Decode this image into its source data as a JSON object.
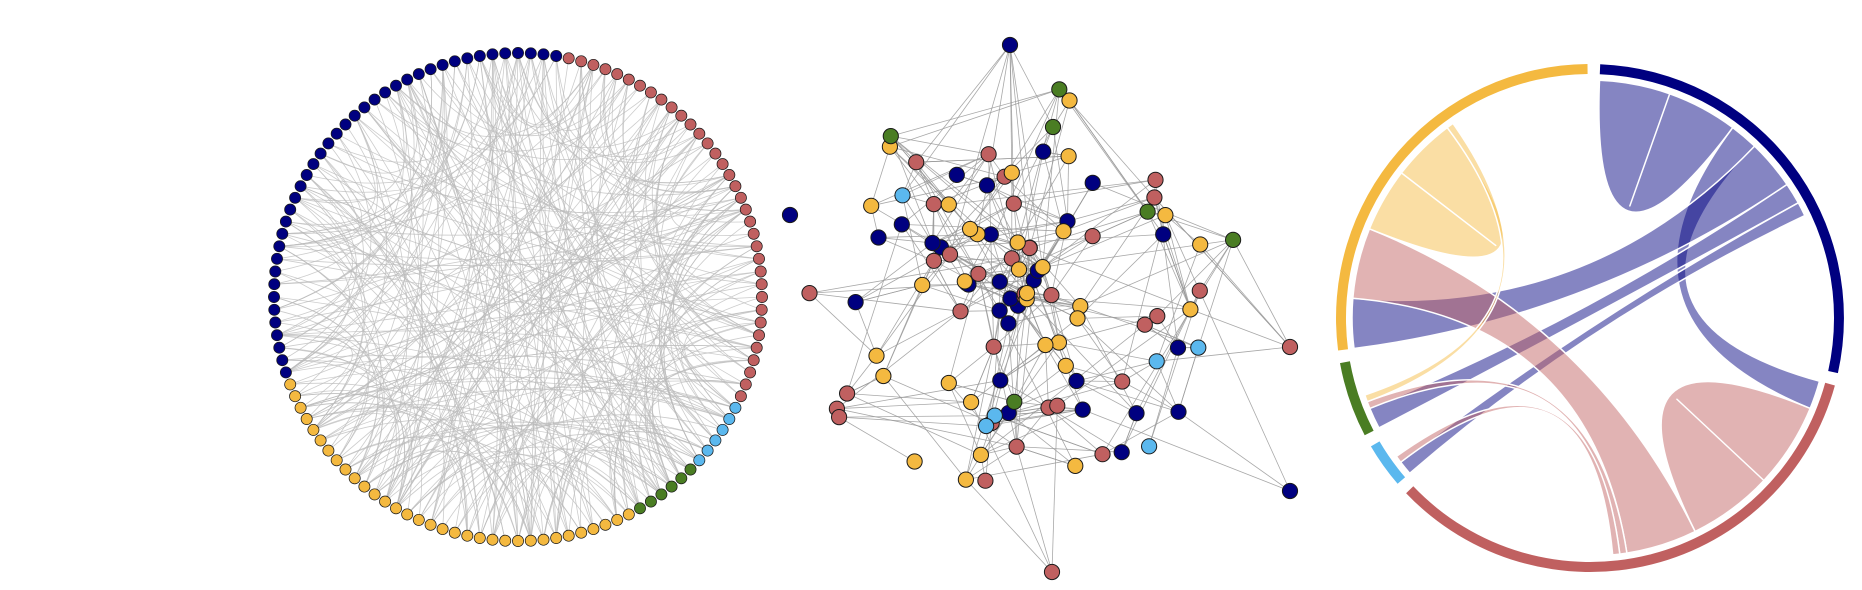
{
  "figure": {
    "palette": {
      "navy": "#000080",
      "red": "#c06060",
      "yellow": "#f4b940",
      "green": "#4a7d23",
      "lightblue": "#5bb8ee",
      "edge": "#999999",
      "circle_edge": "#bbbbbb",
      "background": "#ffffff"
    },
    "groups": [
      {
        "id": "navy",
        "color_key": "navy",
        "node_count": 40
      },
      {
        "id": "red",
        "color_key": "red",
        "node_count": 35
      },
      {
        "id": "lightblue",
        "color_key": "lightblue",
        "node_count": 6
      },
      {
        "id": "green",
        "color_key": "green",
        "node_count": 6
      },
      {
        "id": "yellow",
        "color_key": "yellow",
        "node_count": 33
      }
    ],
    "panels": [
      {
        "id": "circular-layout",
        "kind": "circular network layout"
      },
      {
        "id": "force-directed-layout",
        "kind": "force-directed network layout"
      },
      {
        "id": "chord-diagram",
        "kind": "chord diagram"
      }
    ],
    "chord": {
      "group_order": [
        "navy",
        "red",
        "lightblue",
        "green",
        "yellow"
      ],
      "group_weights": {
        "navy": 29,
        "red": 35,
        "lightblue": 3,
        "green": 5,
        "yellow": 28
      },
      "ribbons": [
        {
          "from": "navy",
          "to": "navy",
          "value": 10
        },
        {
          "from": "navy",
          "to": "red",
          "value": 4
        },
        {
          "from": "navy",
          "to": "yellow",
          "value": 7
        },
        {
          "from": "navy",
          "to": "green",
          "value": 3
        },
        {
          "from": "navy",
          "to": "lightblue",
          "value": 2
        },
        {
          "from": "red",
          "to": "red",
          "value": 12
        },
        {
          "from": "red",
          "to": "yellow",
          "value": 10
        },
        {
          "from": "red",
          "to": "green",
          "value": 1
        },
        {
          "from": "red",
          "to": "lightblue",
          "value": 1
        },
        {
          "from": "yellow",
          "to": "yellow",
          "value": 9
        },
        {
          "from": "yellow",
          "to": "green",
          "value": 1
        }
      ]
    }
  }
}
